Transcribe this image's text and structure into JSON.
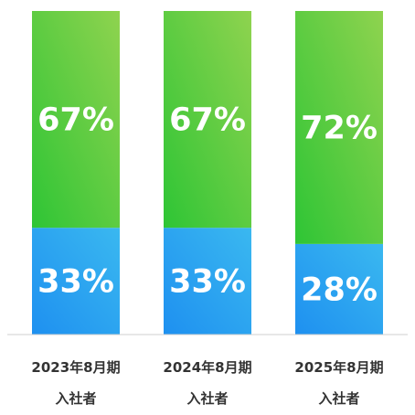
{
  "chart_data": {
    "type": "bar",
    "stacked": true,
    "orientation": "vertical",
    "categories": [
      [
        "2023年8月期",
        "入社者"
      ],
      [
        "2024年8月期",
        "入社者"
      ],
      [
        "2025年8月期",
        "入社者"
      ]
    ],
    "series": [
      {
        "values": [
          33,
          33,
          28
        ],
        "labels": [
          "33%",
          "33%",
          "28%"
        ],
        "color_start": "#1e90f0",
        "color_end": "#3ab8f0"
      },
      {
        "values": [
          67,
          67,
          72
        ],
        "labels": [
          "67%",
          "67%",
          "72%"
        ],
        "color_start": "#2ec535",
        "color_end": "#8fd34f"
      }
    ],
    "ylim": [
      0,
      100
    ],
    "grid": false,
    "legend": "none",
    "title": "",
    "xlabel": "",
    "ylabel": ""
  },
  "colors": {
    "baseline": "#cfcfcf",
    "label_text": "#ffffff",
    "category_text": "#333333",
    "background": "#ffffff"
  }
}
